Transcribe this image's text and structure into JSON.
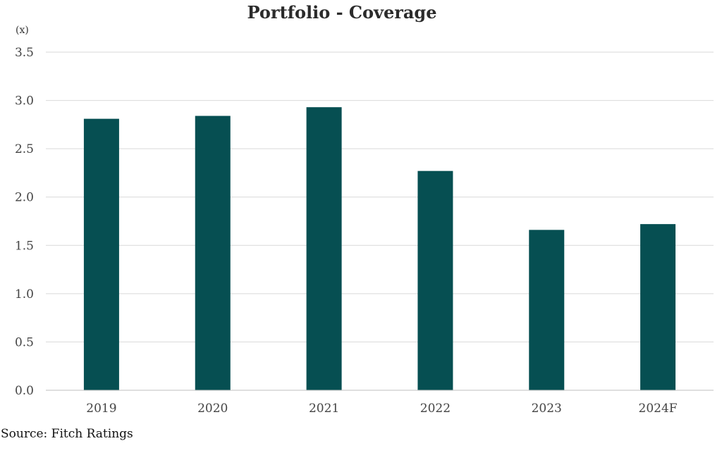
{
  "chart_data": {
    "type": "bar",
    "title": "Portfolio - Coverage",
    "unit_label": "(x)",
    "categories": [
      "2019",
      "2020",
      "2021",
      "2022",
      "2023",
      "2024F"
    ],
    "values": [
      2.81,
      2.84,
      2.93,
      2.27,
      1.66,
      1.72
    ],
    "ylim": [
      0,
      3.5
    ],
    "yticks": [
      "0.0",
      "0.5",
      "1.0",
      "1.5",
      "2.0",
      "2.5",
      "3.0",
      "3.5"
    ],
    "grid": true,
    "bar_color": "#064f52",
    "source": "Source: Fitch Ratings"
  }
}
